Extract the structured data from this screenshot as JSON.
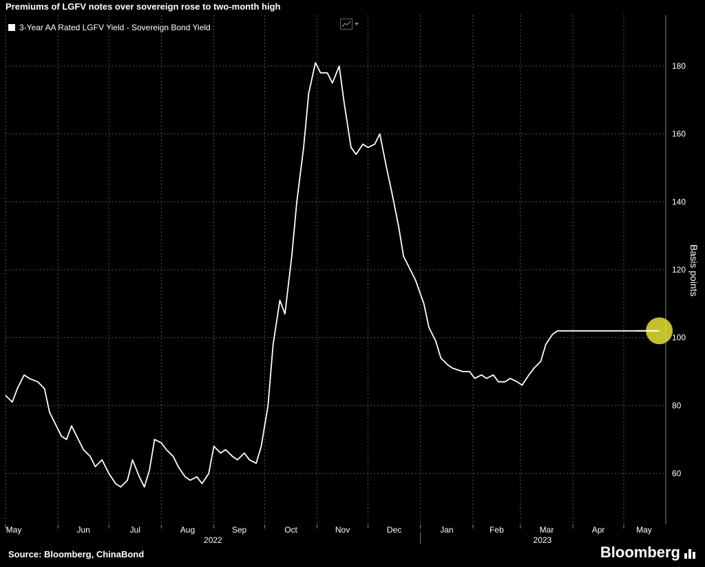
{
  "title": "Premiums of LGFV notes over sovereign rose to two-month high",
  "source": "Source: Bloomberg, ChinaBond",
  "brand": "Bloomberg",
  "colors": {
    "background": "#000000",
    "line": "#ffffff",
    "grid": "#555555",
    "highlight": "#e6e233"
  },
  "chart_data": {
    "type": "line",
    "title": "Premiums of LGFV notes over sovereign rose to two-month high",
    "ylabel": "Basis points",
    "ylim": [
      45,
      195
    ],
    "yticks": [
      60,
      80,
      100,
      120,
      140,
      160,
      180
    ],
    "grid": true,
    "legend_position": "top-left",
    "x_start": "2022-05-01",
    "x_end": "2023-05-25",
    "month_labels": [
      "May",
      "Jun",
      "Jul",
      "Aug",
      "Sep",
      "Oct",
      "Nov",
      "Dec",
      "Jan",
      "Feb",
      "Mar",
      "Apr",
      "May"
    ],
    "year_labels": [
      "2022",
      "2023"
    ],
    "series": [
      {
        "name": "3-Year AA Rated LGFV Yield - Sovereign Bond Yield",
        "x": [
          "2022-05-01",
          "2022-05-05",
          "2022-05-08",
          "2022-05-12",
          "2022-05-15",
          "2022-05-20",
          "2022-05-24",
          "2022-05-27",
          "2022-05-31",
          "2022-06-03",
          "2022-06-06",
          "2022-06-09",
          "2022-06-13",
          "2022-06-16",
          "2022-06-20",
          "2022-06-23",
          "2022-06-27",
          "2022-07-01",
          "2022-07-05",
          "2022-07-08",
          "2022-07-12",
          "2022-07-15",
          "2022-07-19",
          "2022-07-22",
          "2022-07-25",
          "2022-07-28",
          "2022-08-01",
          "2022-08-04",
          "2022-08-08",
          "2022-08-11",
          "2022-08-15",
          "2022-08-18",
          "2022-08-22",
          "2022-08-25",
          "2022-08-29",
          "2022-09-01",
          "2022-09-05",
          "2022-09-08",
          "2022-09-12",
          "2022-09-15",
          "2022-09-19",
          "2022-09-22",
          "2022-09-26",
          "2022-09-29",
          "2022-10-03",
          "2022-10-06",
          "2022-10-10",
          "2022-10-13",
          "2022-10-17",
          "2022-10-20",
          "2022-10-24",
          "2022-10-27",
          "2022-10-31",
          "2022-11-03",
          "2022-11-07",
          "2022-11-10",
          "2022-11-14",
          "2022-11-17",
          "2022-11-21",
          "2022-11-24",
          "2022-11-28",
          "2022-12-01",
          "2022-12-05",
          "2022-12-08",
          "2022-12-12",
          "2022-12-15",
          "2022-12-19",
          "2022-12-22",
          "2022-12-26",
          "2022-12-29",
          "2023-01-03",
          "2023-01-06",
          "2023-01-10",
          "2023-01-13",
          "2023-01-17",
          "2023-01-20",
          "2023-01-26",
          "2023-01-30",
          "2023-02-02",
          "2023-02-06",
          "2023-02-09",
          "2023-02-13",
          "2023-02-16",
          "2023-02-20",
          "2023-02-23",
          "2023-02-27",
          "2023-03-02",
          "2023-03-06",
          "2023-03-09",
          "2023-03-13",
          "2023-03-16",
          "2023-03-20",
          "2023-03-23",
          "2023-03-27",
          "2023-03-30",
          "2023-04-03",
          "2023-04-06",
          "2023-04-10",
          "2023-04-13",
          "2023-04-17",
          "2023-04-20",
          "2023-04-24",
          "2023-04-27",
          "2023-05-01",
          "2023-05-04",
          "2023-05-08",
          "2023-05-11",
          "2023-05-15",
          "2023-05-18",
          "2023-05-22"
        ],
        "values": [
          83,
          81,
          85,
          89,
          88,
          87,
          85,
          78,
          74,
          71,
          70,
          74,
          70,
          67,
          65,
          62,
          64,
          60,
          57,
          56,
          58,
          64,
          59,
          56,
          61,
          70,
          69,
          67,
          65,
          62,
          59,
          58,
          59,
          57,
          60,
          68,
          66,
          67,
          65,
          64,
          66,
          64,
          63,
          68,
          80,
          98,
          111,
          107,
          124,
          140,
          156,
          172,
          181,
          178,
          178,
          175,
          180,
          169,
          156,
          154,
          157,
          156,
          157,
          160,
          150,
          143,
          133,
          124,
          120,
          117,
          110,
          103,
          99,
          94,
          92,
          91,
          90,
          90,
          88,
          89,
          88,
          89,
          87,
          87,
          88,
          87,
          86,
          89,
          91,
          93,
          98,
          101,
          102,
          102,
          102,
          102,
          102,
          102,
          102,
          102,
          102,
          102,
          102,
          102,
          102,
          102,
          102,
          102,
          102,
          102
        ]
      }
    ],
    "annotations": [
      {
        "type": "highlight-circle",
        "x": "2023-05-22",
        "y": 102
      }
    ]
  }
}
